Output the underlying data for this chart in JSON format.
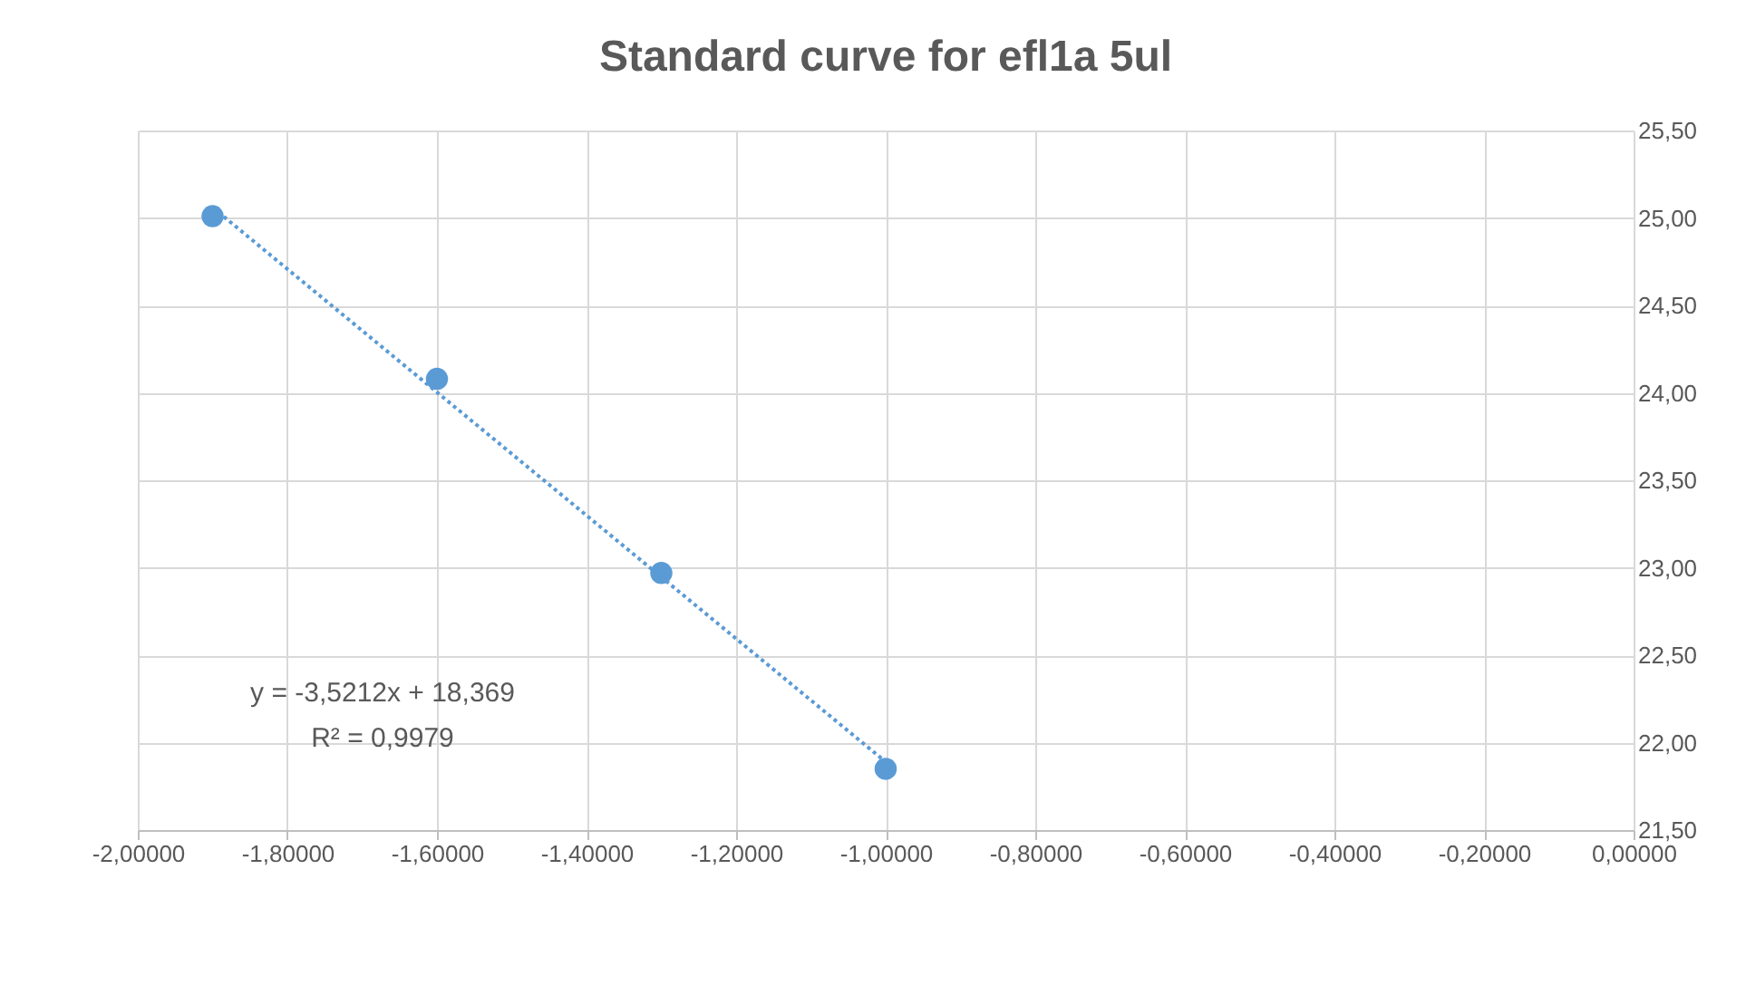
{
  "chart_data": {
    "type": "scatter",
    "title": "Standard curve for efl1a 5ul",
    "series": [
      {
        "type": "scatter",
        "color": "#5b9bd5",
        "marker": "circle",
        "x": [
          -1.9,
          -1.6,
          -1.3,
          -1.0
        ],
        "values": [
          25.01,
          24.08,
          22.97,
          21.85
        ]
      },
      {
        "type": "line",
        "color": "#5b9bd5",
        "line_style": "dotted",
        "x": [
          -1.9,
          -1.0
        ],
        "values": [
          25.06,
          21.89
        ]
      }
    ],
    "xlim": [
      -2.0,
      0.0
    ],
    "xticks": [
      {
        "value": -2.0,
        "label": "-2,00000"
      },
      {
        "value": -1.8,
        "label": "-1,80000"
      },
      {
        "value": -1.6,
        "label": "-1,60000"
      },
      {
        "value": -1.4,
        "label": "-1,40000"
      },
      {
        "value": -1.2,
        "label": "-1,20000"
      },
      {
        "value": -1.0,
        "label": "-1,00000"
      },
      {
        "value": -0.8,
        "label": "-0,80000"
      },
      {
        "value": -0.6,
        "label": "-0,60000"
      },
      {
        "value": -0.4,
        "label": "-0,40000"
      },
      {
        "value": -0.2,
        "label": "-0,20000"
      },
      {
        "value": 0.0,
        "label": "0,00000"
      }
    ],
    "ylim": [
      21.5,
      25.5
    ],
    "yticks": [
      {
        "value": 21.5,
        "label": "21,50"
      },
      {
        "value": 22.0,
        "label": "22,00"
      },
      {
        "value": 22.5,
        "label": "22,50"
      },
      {
        "value": 23.0,
        "label": "23,00"
      },
      {
        "value": 23.5,
        "label": "23,50"
      },
      {
        "value": 24.0,
        "label": "24,00"
      },
      {
        "value": 24.5,
        "label": "24,50"
      },
      {
        "value": 25.0,
        "label": "25,00"
      },
      {
        "value": 25.5,
        "label": "25,50"
      }
    ],
    "annotations": [
      "y = -3,5212x + 18,369",
      "R² = 0,9979"
    ],
    "grid": true
  }
}
